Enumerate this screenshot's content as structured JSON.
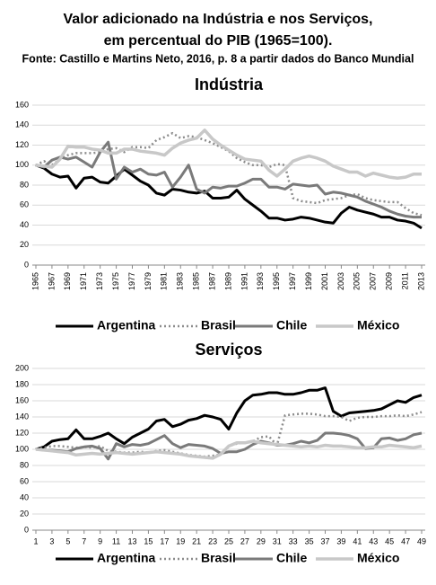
{
  "header": {
    "title_lines": [
      "Valor adicionado na Indústria e nos Serviços,",
      "em percentual do PIB (1965=100)."
    ],
    "source": "Fonte: Castillo e  Martins Neto, 2016,  p. 8 a partir dados do Banco Mundial"
  },
  "chart_data": [
    {
      "type": "line",
      "title": "Indústria",
      "x": [
        1965,
        1966,
        1967,
        1968,
        1969,
        1970,
        1971,
        1972,
        1973,
        1974,
        1975,
        1976,
        1977,
        1978,
        1979,
        1980,
        1981,
        1982,
        1983,
        1984,
        1985,
        1986,
        1987,
        1988,
        1989,
        1990,
        1991,
        1992,
        1993,
        1994,
        1995,
        1996,
        1997,
        1998,
        1999,
        2000,
        2001,
        2002,
        2003,
        2004,
        2005,
        2006,
        2007,
        2008,
        2009,
        2010,
        2011,
        2012,
        2013
      ],
      "xlim": [
        1965,
        2013
      ],
      "xticks": [
        1965,
        1967,
        1969,
        1971,
        1973,
        1975,
        1977,
        1979,
        1981,
        1983,
        1985,
        1987,
        1989,
        1991,
        1993,
        1995,
        1997,
        1999,
        2001,
        2003,
        2005,
        2007,
        2009,
        2011,
        2013
      ],
      "ylim": [
        0,
        160
      ],
      "yticks": [
        0,
        20,
        40,
        60,
        80,
        100,
        120,
        140,
        160
      ],
      "grid": true,
      "legend": "bottom",
      "series": [
        {
          "name": "Argentina",
          "color": "#000000",
          "style": "solid",
          "width": 3,
          "values": [
            100,
            97,
            91,
            88,
            89,
            77,
            87,
            88,
            83,
            82,
            89,
            96,
            90,
            84,
            80,
            72,
            70,
            76,
            75,
            73,
            72,
            74,
            67,
            67,
            68,
            75,
            66,
            60,
            54,
            47,
            47,
            45,
            46,
            48,
            47,
            45,
            43,
            42,
            52,
            58,
            55,
            53,
            51,
            48,
            48,
            45,
            44,
            42,
            37
          ]
        },
        {
          "name": "Brasil",
          "color": "#8c8c8c",
          "style": "dotted",
          "width": 2.5,
          "values": [
            100,
            104,
            100,
            106,
            110,
            112,
            112,
            112,
            113,
            116,
            117,
            113,
            118,
            118,
            117,
            125,
            128,
            132,
            127,
            129,
            128,
            125,
            122,
            118,
            114,
            107,
            103,
            100,
            100,
            98,
            101,
            100,
            67,
            64,
            63,
            62,
            65,
            66,
            67,
            70,
            71,
            67,
            65,
            64,
            63,
            63,
            57,
            52,
            50
          ]
        },
        {
          "name": "Chile",
          "color": "#7a7a7a",
          "style": "solid",
          "width": 3,
          "values": [
            100,
            98,
            105,
            108,
            106,
            108,
            103,
            98,
            113,
            123,
            86,
            98,
            93,
            96,
            91,
            90,
            93,
            78,
            88,
            100,
            76,
            72,
            78,
            77,
            79,
            79,
            82,
            86,
            86,
            78,
            78,
            76,
            81,
            80,
            79,
            80,
            71,
            73,
            72,
            70,
            68,
            64,
            61,
            58,
            54,
            51,
            49,
            48,
            48
          ]
        },
        {
          "name": "México",
          "color": "#c8c8c8",
          "style": "solid",
          "width": 3.5,
          "values": [
            100,
            99,
            98,
            106,
            119,
            118,
            118,
            116,
            115,
            112,
            112,
            116,
            116,
            114,
            113,
            112,
            110,
            117,
            122,
            125,
            127,
            135,
            126,
            120,
            115,
            110,
            106,
            105,
            104,
            95,
            89,
            96,
            104,
            107,
            109,
            107,
            104,
            99,
            96,
            93,
            93,
            89,
            92,
            90,
            88,
            87,
            88,
            91,
            91
          ]
        }
      ]
    },
    {
      "type": "line",
      "title": "Serviços",
      "x": [
        1,
        2,
        3,
        4,
        5,
        6,
        7,
        8,
        9,
        10,
        11,
        12,
        13,
        14,
        15,
        16,
        17,
        18,
        19,
        20,
        21,
        22,
        23,
        24,
        25,
        26,
        27,
        28,
        29,
        30,
        31,
        32,
        33,
        34,
        35,
        36,
        37,
        38,
        39,
        40,
        41,
        42,
        43,
        44,
        45,
        46,
        47,
        48,
        49
      ],
      "xlim": [
        1,
        49
      ],
      "xticks": [
        1,
        3,
        5,
        7,
        9,
        11,
        13,
        15,
        17,
        19,
        21,
        23,
        25,
        27,
        29,
        31,
        33,
        35,
        37,
        39,
        41,
        43,
        45,
        47,
        49
      ],
      "ylim": [
        0,
        200
      ],
      "yticks": [
        0,
        20,
        40,
        60,
        80,
        100,
        120,
        140,
        160,
        180,
        200
      ],
      "grid": true,
      "legend": "bottom",
      "series": [
        {
          "name": "Argentina",
          "color": "#000000",
          "style": "solid",
          "width": 3,
          "values": [
            100,
            103,
            110,
            112,
            113,
            124,
            113,
            113,
            116,
            120,
            113,
            107,
            115,
            120,
            125,
            135,
            137,
            128,
            131,
            136,
            138,
            142,
            140,
            137,
            125,
            145,
            160,
            167,
            168,
            170,
            170,
            168,
            168,
            170,
            173,
            173,
            176,
            147,
            141,
            145,
            146,
            147,
            148,
            150,
            155,
            160,
            158,
            164,
            167
          ]
        },
        {
          "name": "Brasil",
          "color": "#8c8c8c",
          "style": "dotted",
          "width": 2.5,
          "values": [
            100,
            102,
            104,
            104,
            103,
            102,
            103,
            102,
            104,
            98,
            97,
            96,
            96,
            97,
            96,
            98,
            99,
            97,
            95,
            93,
            92,
            91,
            92,
            94,
            104,
            107,
            108,
            110,
            115,
            116,
            105,
            142,
            143,
            144,
            144,
            143,
            141,
            141,
            140,
            135,
            139,
            140,
            140,
            141,
            141,
            142,
            141,
            143,
            146
          ]
        },
        {
          "name": "Chile",
          "color": "#7a7a7a",
          "style": "solid",
          "width": 3,
          "values": [
            100,
            99,
            99,
            98,
            97,
            101,
            103,
            104,
            101,
            88,
            107,
            103,
            106,
            105,
            107,
            112,
            117,
            107,
            102,
            106,
            105,
            104,
            101,
            95,
            97,
            97,
            100,
            106,
            110,
            108,
            105,
            105,
            107,
            110,
            108,
            111,
            120,
            120,
            119,
            117,
            113,
            101,
            102,
            113,
            114,
            111,
            113,
            118,
            120
          ]
        },
        {
          "name": "México",
          "color": "#c8c8c8",
          "style": "solid",
          "width": 3.5,
          "values": [
            100,
            99,
            98,
            97,
            96,
            93,
            94,
            95,
            94,
            95,
            96,
            95,
            94,
            95,
            96,
            97,
            96,
            95,
            94,
            92,
            91,
            90,
            89,
            94,
            104,
            108,
            108,
            110,
            108,
            107,
            106,
            105,
            104,
            103,
            104,
            103,
            105,
            104,
            104,
            103,
            102,
            102,
            103,
            103,
            105,
            104,
            103,
            102,
            104
          ]
        }
      ]
    }
  ]
}
